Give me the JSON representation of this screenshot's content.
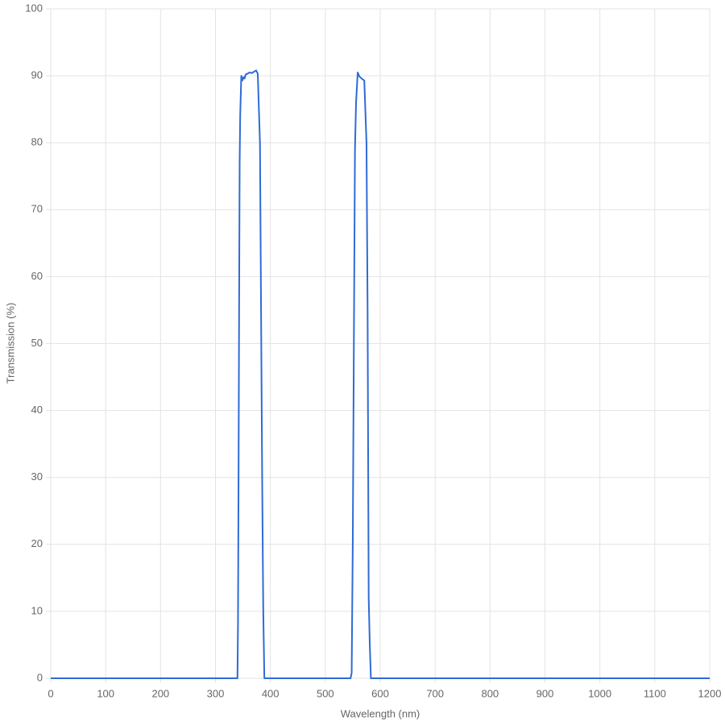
{
  "chart_data": {
    "type": "line",
    "xlabel": "Wavelength (nm)",
    "ylabel": "Transmission (%)",
    "xlim": [
      0,
      1200
    ],
    "xticks": [
      0,
      100,
      200,
      300,
      400,
      500,
      600,
      700,
      800,
      900,
      1000,
      1100,
      1200
    ],
    "ylim": [
      0,
      100
    ],
    "yticks": [
      0,
      10,
      20,
      30,
      40,
      50,
      60,
      70,
      80,
      90,
      100
    ],
    "grid": true,
    "series": [
      {
        "color": "#2f6bd6",
        "x": [
          0,
          340,
          341,
          342,
          343,
          344,
          345,
          347,
          349,
          351,
          353,
          355,
          358,
          362,
          366,
          370,
          374,
          377,
          381,
          383,
          385,
          387,
          389,
          546,
          548,
          550,
          552,
          554,
          556,
          559,
          562,
          566,
          571,
          575,
          577,
          579,
          581,
          583,
          1200
        ],
        "values": [
          0,
          0,
          8,
          30,
          55,
          77,
          84,
          90,
          89.3,
          89.8,
          89.6,
          90.2,
          90.3,
          90.5,
          90.4,
          90.6,
          90.8,
          90.3,
          80,
          55,
          30,
          10,
          0,
          0,
          0.8,
          20,
          50,
          79,
          86,
          90.5,
          89.9,
          89.6,
          89.3,
          80,
          55,
          12,
          5,
          0,
          0
        ]
      }
    ]
  }
}
